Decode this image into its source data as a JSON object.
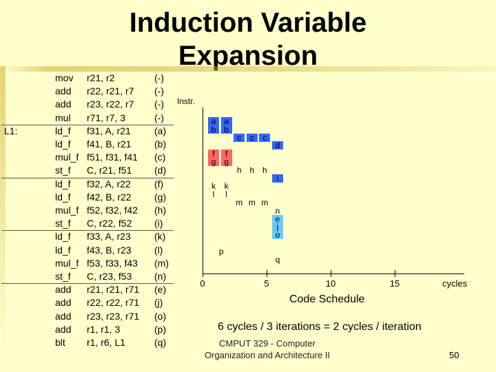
{
  "title": {
    "line1": "Induction Variable",
    "line2": "Expansion"
  },
  "code": [
    {
      "label": "",
      "op": "mov",
      "args": "r21, r2",
      "tag": "(-)"
    },
    {
      "label": "",
      "op": "add",
      "args": "r22, r21, r7",
      "tag": "(-)"
    },
    {
      "label": "",
      "op": "add",
      "args": "r23, r22, r7",
      "tag": "(-)"
    },
    {
      "label": "",
      "op": "mul",
      "args": "r71, r7, 3",
      "tag": "(-)"
    },
    {
      "label": "L1:",
      "op": "ld_f",
      "args": "f31, A, r21",
      "tag": "(a)"
    },
    {
      "label": "",
      "op": "ld_f",
      "args": "f41, B, r21",
      "tag": "(b)"
    },
    {
      "label": "",
      "op": "mul_f",
      "args": "f51, f31, f41",
      "tag": "(c)"
    },
    {
      "label": "",
      "op": "st_f",
      "args": "C, r21, f51",
      "tag": "(d)"
    },
    {
      "label": "",
      "op": "ld_f",
      "args": "f32, A, r22",
      "tag": "(f)"
    },
    {
      "label": "",
      "op": "ld_f",
      "args": "f42, B, r22",
      "tag": "(g)"
    },
    {
      "label": "",
      "op": "mul_f",
      "args": "f52, f32, f42",
      "tag": "(h)"
    },
    {
      "label": "",
      "op": "st_f",
      "args": "C, r22, f52",
      "tag": "(i)"
    },
    {
      "label": "",
      "op": "ld_f",
      "args": "f33, A, r23",
      "tag": "(k)"
    },
    {
      "label": "",
      "op": "ld_f",
      "args": "f43, B, r23",
      "tag": "(l)"
    },
    {
      "label": "",
      "op": "mul_f",
      "args": "f53, f33, f43",
      "tag": "(m)"
    },
    {
      "label": "",
      "op": "st_f",
      "args": "C, r23, f53",
      "tag": "(n)"
    },
    {
      "label": "",
      "op": "add",
      "args": "r21, r21, r71",
      "tag": "(e)"
    },
    {
      "label": "",
      "op": "add",
      "args": "r22, r22, r71",
      "tag": "(j)"
    },
    {
      "label": "",
      "op": "add",
      "args": "r23, r23, r71",
      "tag": "(o)"
    },
    {
      "label": "",
      "op": "add",
      "args": "r1, r1, 3",
      "tag": "(p)"
    },
    {
      "label": "",
      "op": "blt",
      "args": "r1, r6, L1",
      "tag": "(q)"
    }
  ],
  "schedule": {
    "y_label": "Instr.",
    "x_label": "cycles",
    "x_ticks": [
      "0",
      "5",
      "10",
      "15"
    ],
    "caption": "Code Schedule",
    "cells": [
      {
        "text": "a",
        "cycle": 0,
        "slot": 0,
        "color": "#3366ff"
      },
      {
        "text": "a",
        "cycle": 1,
        "slot": 0,
        "color": "#3366ff"
      },
      {
        "text": "b",
        "cycle": 0,
        "slot": 1,
        "color": "#3366ff"
      },
      {
        "text": "b",
        "cycle": 1,
        "slot": 1,
        "color": "#3366ff"
      },
      {
        "text": "c",
        "cycle": 2,
        "slot": 2,
        "color": "#3366ff"
      },
      {
        "text": "c",
        "cycle": 3,
        "slot": 2,
        "color": "#3366ff"
      },
      {
        "text": "c",
        "cycle": 4,
        "slot": 2,
        "color": "#3366ff"
      },
      {
        "text": "d",
        "cycle": 5,
        "slot": 3,
        "color": "#3366ff"
      },
      {
        "text": "f",
        "cycle": 0,
        "slot": 4,
        "color": "#ff6666"
      },
      {
        "text": "f",
        "cycle": 1,
        "slot": 4,
        "color": "#ff6666"
      },
      {
        "text": "g",
        "cycle": 0,
        "slot": 5,
        "color": "#ff6666"
      },
      {
        "text": "g",
        "cycle": 1,
        "slot": 5,
        "color": "#ff6666"
      },
      {
        "text": "h",
        "cycle": 2,
        "slot": 6,
        "color": ""
      },
      {
        "text": "h",
        "cycle": 3,
        "slot": 6,
        "color": ""
      },
      {
        "text": "h",
        "cycle": 4,
        "slot": 6,
        "color": ""
      },
      {
        "text": "i",
        "cycle": 5,
        "slot": 7,
        "color": "#3366ff"
      },
      {
        "text": "k",
        "cycle": 0,
        "slot": 8,
        "color": ""
      },
      {
        "text": "k",
        "cycle": 1,
        "slot": 8,
        "color": ""
      },
      {
        "text": "l",
        "cycle": 0,
        "slot": 9,
        "color": ""
      },
      {
        "text": "l",
        "cycle": 1,
        "slot": 9,
        "color": ""
      },
      {
        "text": "m",
        "cycle": 2,
        "slot": 10,
        "color": ""
      },
      {
        "text": "m",
        "cycle": 3,
        "slot": 10,
        "color": ""
      },
      {
        "text": "m",
        "cycle": 4,
        "slot": 10,
        "color": ""
      },
      {
        "text": "n",
        "cycle": 5,
        "slot": 11,
        "color": ""
      },
      {
        "text": "e",
        "cycle": 5,
        "slot": 12,
        "color": "#66ccff"
      },
      {
        "text": "j",
        "cycle": 5,
        "slot": 13,
        "color": "#66ccff"
      },
      {
        "text": "o",
        "cycle": 5,
        "slot": 14,
        "color": "#66ccff"
      },
      {
        "text": "p",
        "cycle": 0.6,
        "slot": 16,
        "color": ""
      },
      {
        "text": "q",
        "cycle": 5,
        "slot": 17,
        "color": ""
      }
    ]
  },
  "ratio": "6 cycles / 3 iterations = 2 cycles / iteration",
  "footer": {
    "line1": "CMPUT 329 - Computer",
    "line2": "Organization and Architecture II"
  },
  "page_number": "50"
}
